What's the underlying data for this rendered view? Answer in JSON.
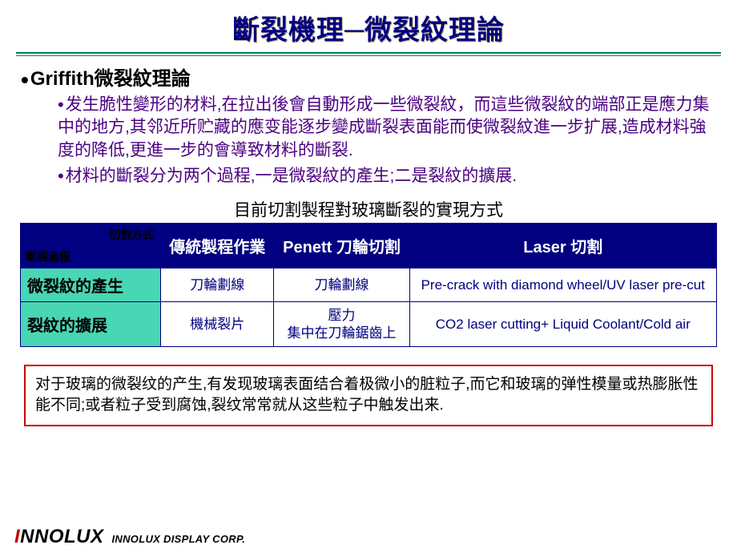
{
  "title": "斷裂機理─微裂紋理論",
  "section_heading": "Griffith微裂紋理論",
  "paragraph1": "发生脆性變形的材料,在拉出後會自動形成一些微裂紋，而這些微裂紋的端部正是應力集中的地方,其邻近所贮藏的應变能逐步變成斷裂表面能而使微裂紋進一步扩展,造成材料強度的降低,更進一步的會導致材料的斷裂.",
  "paragraph2": "材料的斷裂分为两个過程,一是微裂紋的產生;二是裂紋的擴展.",
  "table": {
    "caption": "目前切割製程對玻璃斷裂的實現方式",
    "diag_top": "切割方式",
    "diag_bottom": "斷裂過程",
    "headers": [
      "傳統製程作業",
      "Penett 刀輪切割",
      "Laser 切割"
    ],
    "rows": [
      {
        "label": "微裂紋的產生",
        "cells": [
          "刀輪劃線",
          "刀輪劃線",
          "Pre-crack with diamond wheel/UV laser pre-cut"
        ]
      },
      {
        "label": "裂紋的擴展",
        "cells": [
          "機械裂片",
          "壓力\n集中在刀輪鋸齒上",
          "CO2 laser cutting+ Liquid Coolant/Cold air"
        ]
      }
    ],
    "colors": {
      "border": "#000080",
      "header_bg": "#000080",
      "header_fg": "#ffffff",
      "rowhead_bg": "#48d6b4",
      "cell_fg": "#000080"
    }
  },
  "note": "对于玻璃的微裂纹的产生,有发现玻璃表面结合着极微小的脏粒子,而它和玻璃的弹性模量或热膨胀性能不同;或者粒子受到腐蚀,裂纹常常就从这些粒子中触发出来.",
  "footer": {
    "logo_i": "I",
    "logo_rest": "NNOLUX",
    "sub": "INNOLUX DISPLAY CORP."
  },
  "style": {
    "title_color": "#000080",
    "body_color": "#4b0082",
    "note_border": "#cc0000",
    "rule_color": "#008060"
  }
}
